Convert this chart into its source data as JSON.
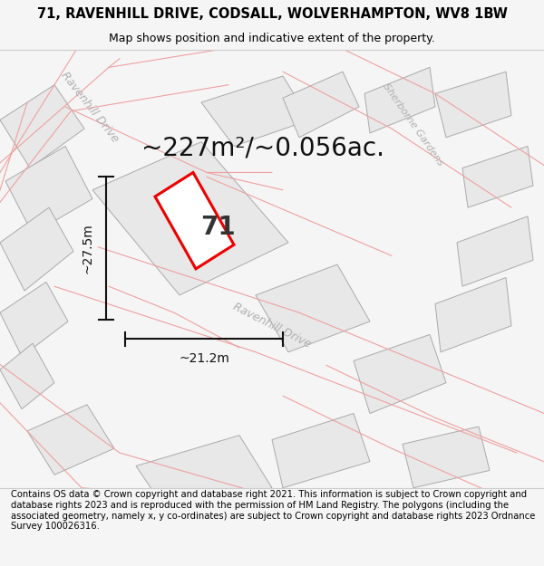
{
  "title": "71, RAVENHILL DRIVE, CODSALL, WOLVERHAMPTON, WV8 1BW",
  "subtitle": "Map shows position and indicative extent of the property.",
  "footer": "Contains OS data © Crown copyright and database right 2021. This information is subject to Crown copyright and database rights 2023 and is reproduced with the permission of HM Land Registry. The polygons (including the associated geometry, namely x, y co-ordinates) are subject to Crown copyright and database rights 2023 Ordnance Survey 100026316.",
  "area_label": "~227m²/~0.056ac.",
  "width_label": "~21.2m",
  "height_label": "~27.5m",
  "number_label": "71",
  "bg_color": "#f5f5f5",
  "map_bg": "#ffffff",
  "building_fill": "#e8e8e8",
  "building_edge": "#aaaaaa",
  "road_line_color": "#f0a0a0",
  "road_label_color": "#b0b0b0",
  "highlight_color": "#ee0000",
  "dim_color": "#111111",
  "title_fontsize": 10.5,
  "subtitle_fontsize": 9,
  "footer_fontsize": 7.2,
  "area_fontsize": 20,
  "dim_label_fontsize": 10,
  "number_fontsize": 20,
  "road_label_fontsize": 9
}
